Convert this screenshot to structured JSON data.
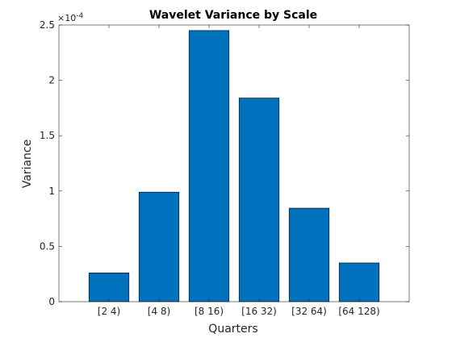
{
  "chart_data": {
    "type": "bar",
    "title": "Wavelet Variance by Scale",
    "xlabel": "Quarters",
    "ylabel": "Variance",
    "categories": [
      "[2 4)",
      "[4 8)",
      "[8 16)",
      "[16 32)",
      "[32 64)",
      "[64 128)"
    ],
    "values": [
      2.6e-05,
      9.9e-05,
      0.000245,
      0.000184,
      8.45e-05,
      3.5e-05
    ],
    "ylim": [
      0,
      0.00025
    ],
    "yticks": [
      0,
      0.5,
      1,
      1.5,
      2,
      2.5
    ],
    "ytick_labels": [
      "0",
      "0.5",
      "1",
      "1.5",
      "2",
      "2.5"
    ],
    "y_exponent": {
      "base": "×10",
      "power": "-4"
    },
    "bar_color": "#0072BD",
    "grid": false,
    "legend": "none"
  }
}
